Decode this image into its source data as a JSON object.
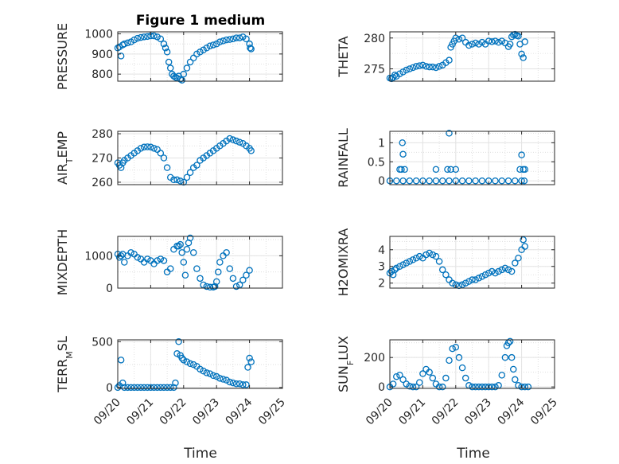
{
  "chart_data": {
    "type": "scatter",
    "title": "Figure 1 medium",
    "marker": "circle-open",
    "color": "#0072BD",
    "grid": true,
    "minor_grid": true,
    "x_tick_labels": [
      "09/20",
      "09/21",
      "09/22",
      "09/23",
      "09/24",
      "09/25"
    ],
    "xlim": [
      0,
      5
    ],
    "xlabel": "Time",
    "panels": [
      {
        "ylabel": "PRESSURE",
        "ylim": [
          765,
          1010
        ],
        "yticks": [
          800,
          900,
          1000
        ],
        "x": [
          0.0,
          0.05,
          0.1,
          0.15,
          0.2,
          0.3,
          0.4,
          0.5,
          0.6,
          0.7,
          0.8,
          0.9,
          1.0,
          1.1,
          1.2,
          1.3,
          1.4,
          1.45,
          1.5,
          1.55,
          1.6,
          1.65,
          1.7,
          1.75,
          1.8,
          1.85,
          1.9,
          1.95,
          2.0,
          2.1,
          2.2,
          2.3,
          2.4,
          2.5,
          2.6,
          2.7,
          2.8,
          2.9,
          3.0,
          3.1,
          3.2,
          3.3,
          3.4,
          3.5,
          3.6,
          3.7,
          3.8,
          3.9,
          4.0,
          4.02,
          4.05
        ],
        "y": [
          930,
          935,
          890,
          945,
          950,
          955,
          960,
          970,
          978,
          982,
          985,
          987,
          990,
          990,
          985,
          975,
          950,
          930,
          910,
          860,
          830,
          800,
          790,
          785,
          780,
          790,
          775,
          770,
          800,
          830,
          860,
          880,
          900,
          910,
          920,
          930,
          940,
          945,
          950,
          960,
          965,
          970,
          972,
          975,
          980,
          980,
          985,
          975,
          950,
          930,
          925
        ]
      },
      {
        "ylabel": "THETA",
        "ylim": [
          273,
          281
        ],
        "yticks": [
          275,
          280
        ],
        "x": [
          0.0,
          0.05,
          0.1,
          0.15,
          0.2,
          0.3,
          0.4,
          0.5,
          0.6,
          0.7,
          0.8,
          0.9,
          1.0,
          1.1,
          1.2,
          1.3,
          1.4,
          1.5,
          1.6,
          1.7,
          1.8,
          1.85,
          1.9,
          1.95,
          2.0,
          2.1,
          2.2,
          2.3,
          2.4,
          2.5,
          2.6,
          2.7,
          2.8,
          2.9,
          3.0,
          3.1,
          3.2,
          3.3,
          3.4,
          3.5,
          3.6,
          3.65,
          3.7,
          3.75,
          3.8,
          3.85,
          3.9,
          3.95,
          4.0,
          4.05,
          4.1
        ],
        "y": [
          273.5,
          273.4,
          273.6,
          274,
          273.8,
          274.2,
          274.5,
          274.8,
          275,
          275.2,
          275.4,
          275.5,
          275.6,
          275.4,
          275.3,
          275.3,
          275.2,
          275.4,
          275.6,
          276,
          276.4,
          278.5,
          279,
          279.5,
          280,
          279.8,
          280,
          279.3,
          278.8,
          279,
          279.2,
          279,
          279.3,
          279,
          279.5,
          279.4,
          279.5,
          279.3,
          279.5,
          279.2,
          278.6,
          279,
          280.2,
          280.5,
          280.6,
          280.4,
          280.3,
          279,
          277.4,
          276.8,
          279.4
        ]
      },
      {
        "ylabel": "AIR_TEMP",
        "ylim": [
          259,
          281
        ],
        "yticks": [
          260,
          270,
          280
        ],
        "x": [
          0.0,
          0.05,
          0.1,
          0.15,
          0.2,
          0.3,
          0.4,
          0.5,
          0.6,
          0.7,
          0.8,
          0.9,
          1.0,
          1.1,
          1.2,
          1.3,
          1.4,
          1.5,
          1.6,
          1.7,
          1.8,
          1.9,
          2.0,
          2.1,
          2.2,
          2.3,
          2.4,
          2.5,
          2.6,
          2.7,
          2.8,
          2.9,
          3.0,
          3.1,
          3.2,
          3.3,
          3.4,
          3.5,
          3.6,
          3.7,
          3.8,
          3.9,
          4.0,
          4.05
        ],
        "y": [
          268,
          267,
          266,
          268,
          269,
          270,
          271,
          272,
          273,
          274,
          274.5,
          274.6,
          274.5,
          274,
          273.5,
          272,
          270,
          266,
          262,
          261,
          261,
          260.5,
          260,
          262,
          264,
          266,
          267,
          269,
          270,
          271,
          272,
          273,
          274,
          275,
          276,
          277,
          278,
          277.5,
          277,
          276.5,
          276,
          275,
          274,
          273
        ]
      },
      {
        "ylabel": "RAINFALL",
        "ylim": [
          -0.1,
          1.3
        ],
        "yticks": [
          0,
          0.5,
          1
        ],
        "x": [
          0.0,
          0.2,
          0.4,
          0.6,
          0.8,
          1.0,
          1.2,
          1.4,
          1.6,
          1.8,
          2.0,
          2.2,
          2.4,
          2.6,
          2.8,
          3.0,
          3.2,
          3.4,
          3.6,
          3.8,
          4.0,
          4.08,
          0.3,
          0.35,
          0.38,
          0.4,
          0.45,
          1.4,
          1.75,
          1.8,
          1.85,
          2.0,
          3.95,
          4.0,
          4.05,
          4.1
        ],
        "y": [
          0,
          0,
          0,
          0,
          0,
          0,
          0,
          0,
          0,
          0,
          0,
          0,
          0,
          0,
          0,
          0,
          0,
          0,
          0,
          0,
          0,
          0,
          0.3,
          0.3,
          1.0,
          0.7,
          0.3,
          0.3,
          0.3,
          1.25,
          0.3,
          0.3,
          0.3,
          0.68,
          0.3,
          0.3
        ]
      },
      {
        "ylabel": "MIXDEPTH",
        "ylim": [
          0,
          1600
        ],
        "yticks": [
          0,
          1000
        ],
        "x": [
          0.0,
          0.05,
          0.1,
          0.15,
          0.2,
          0.3,
          0.4,
          0.5,
          0.6,
          0.7,
          0.8,
          0.9,
          1.0,
          1.1,
          1.2,
          1.3,
          1.4,
          1.5,
          1.6,
          1.7,
          1.8,
          1.85,
          1.9,
          1.95,
          2.0,
          2.05,
          2.1,
          2.15,
          2.2,
          2.3,
          2.4,
          2.5,
          2.6,
          2.7,
          2.8,
          2.9,
          2.95,
          3.0,
          3.05,
          3.1,
          3.2,
          3.3,
          3.4,
          3.5,
          3.6,
          3.7,
          3.8,
          3.9,
          4.0
        ],
        "y": [
          1050,
          950,
          1000,
          1050,
          800,
          1000,
          1100,
          1050,
          950,
          900,
          800,
          900,
          850,
          750,
          850,
          900,
          850,
          500,
          600,
          1200,
          1300,
          1300,
          1350,
          1100,
          800,
          400,
          1200,
          1400,
          1550,
          1100,
          600,
          300,
          100,
          50,
          30,
          30,
          50,
          200,
          500,
          800,
          1000,
          1100,
          600,
          300,
          50,
          100,
          250,
          400,
          550
        ]
      },
      {
        "ylabel": "H2OMIXRA",
        "ylim": [
          1.7,
          4.8
        ],
        "yticks": [
          2,
          3,
          4
        ],
        "x": [
          0.0,
          0.05,
          0.1,
          0.15,
          0.2,
          0.3,
          0.4,
          0.5,
          0.6,
          0.7,
          0.8,
          0.9,
          1.0,
          1.1,
          1.2,
          1.3,
          1.4,
          1.5,
          1.6,
          1.7,
          1.8,
          1.9,
          2.0,
          2.1,
          2.2,
          2.3,
          2.4,
          2.5,
          2.6,
          2.7,
          2.8,
          2.9,
          3.0,
          3.1,
          3.2,
          3.3,
          3.4,
          3.5,
          3.6,
          3.7,
          3.8,
          3.9,
          4.0,
          4.05,
          4.1
        ],
        "y": [
          2.6,
          2.7,
          2.5,
          2.8,
          2.9,
          3.0,
          3.1,
          3.2,
          3.3,
          3.4,
          3.5,
          3.6,
          3.5,
          3.7,
          3.8,
          3.7,
          3.6,
          3.3,
          2.8,
          2.5,
          2.2,
          2.0,
          1.9,
          1.85,
          1.9,
          2.0,
          2.1,
          2.2,
          2.2,
          2.3,
          2.4,
          2.5,
          2.6,
          2.7,
          2.6,
          2.7,
          2.8,
          2.9,
          2.8,
          2.7,
          3.2,
          3.5,
          4.0,
          4.6,
          4.2
        ]
      },
      {
        "ylabel": "TERR_MSL",
        "ylim": [
          -10,
          520
        ],
        "yticks": [
          0,
          500
        ],
        "x": [
          0.0,
          0.05,
          0.1,
          0.15,
          0.2,
          0.3,
          0.4,
          0.5,
          0.6,
          0.7,
          0.8,
          0.9,
          1.0,
          1.1,
          1.2,
          1.3,
          1.4,
          1.5,
          1.6,
          1.7,
          1.75,
          1.8,
          1.85,
          1.9,
          1.95,
          2.0,
          2.1,
          2.2,
          2.3,
          2.4,
          2.5,
          2.6,
          2.7,
          2.8,
          2.9,
          3.0,
          3.1,
          3.2,
          3.3,
          3.4,
          3.5,
          3.6,
          3.7,
          3.8,
          3.9,
          3.95,
          4.0,
          4.05
        ],
        "y": [
          0,
          20,
          300,
          50,
          0,
          0,
          0,
          0,
          0,
          0,
          0,
          0,
          0,
          0,
          0,
          0,
          0,
          0,
          0,
          0,
          50,
          370,
          500,
          350,
          320,
          300,
          280,
          260,
          250,
          230,
          200,
          180,
          160,
          150,
          130,
          120,
          100,
          90,
          80,
          60,
          50,
          40,
          40,
          30,
          30,
          220,
          320,
          280
        ]
      },
      {
        "ylabel": "SUN_FLUX",
        "ylim": [
          -10,
          320
        ],
        "yticks": [
          0,
          200
        ],
        "x": [
          0.0,
          0.1,
          0.2,
          0.3,
          0.4,
          0.5,
          0.6,
          0.7,
          0.8,
          0.9,
          1.0,
          1.1,
          1.2,
          1.3,
          1.4,
          1.5,
          1.6,
          1.7,
          1.8,
          1.9,
          2.0,
          2.1,
          2.2,
          2.3,
          2.4,
          2.5,
          2.6,
          2.7,
          2.8,
          2.9,
          3.0,
          3.1,
          3.2,
          3.3,
          3.4,
          3.5,
          3.55,
          3.6,
          3.65,
          3.7,
          3.75,
          3.8,
          3.9,
          4.0,
          4.1,
          4.2
        ],
        "y": [
          0,
          20,
          70,
          80,
          50,
          20,
          5,
          0,
          0,
          30,
          90,
          120,
          100,
          60,
          20,
          0,
          0,
          60,
          180,
          260,
          270,
          200,
          130,
          60,
          10,
          0,
          0,
          0,
          0,
          0,
          0,
          0,
          0,
          10,
          80,
          200,
          280,
          300,
          310,
          200,
          120,
          50,
          10,
          0,
          0,
          0
        ]
      }
    ]
  }
}
